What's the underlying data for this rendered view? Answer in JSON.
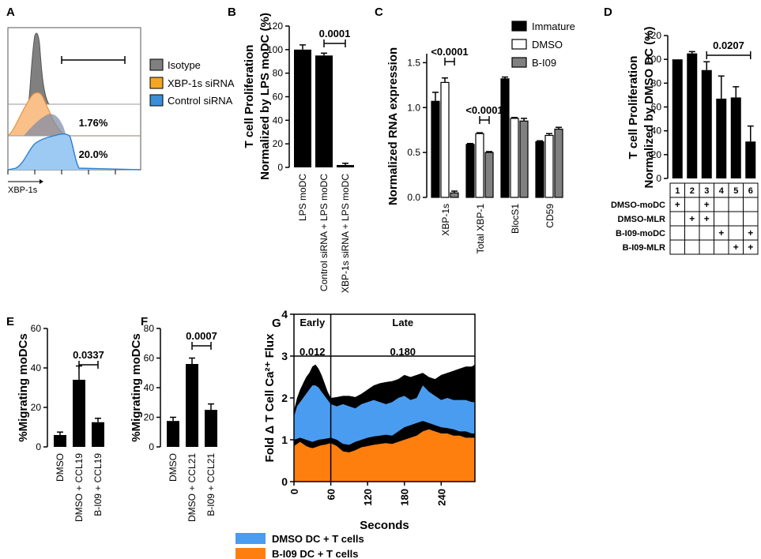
{
  "panels": {
    "A": {
      "label": "A",
      "xlabel": "XBP-1s",
      "gate_pcts": [
        "1.76%",
        "20.0%"
      ],
      "legend": [
        {
          "name": "Isotype",
          "color": "#808080"
        },
        {
          "name": "XBP-1s siRNA",
          "color": "#f5a623"
        },
        {
          "name": "Control siRNA",
          "color": "#3a8fd6"
        }
      ]
    },
    "B": {
      "label": "B"
    },
    "C": {
      "label": "C"
    },
    "D": {
      "label": "D"
    },
    "E": {
      "label": "E"
    },
    "F": {
      "label": "F"
    },
    "G": {
      "label": "G"
    }
  },
  "chart_data": [
    {
      "id": "B",
      "type": "bar",
      "ylabel_lines": [
        "T cell Proliferation",
        "Normalized by LPS moDC (%)"
      ],
      "ylim": [
        0,
        120
      ],
      "yticks": [
        0,
        20,
        40,
        60,
        80,
        100,
        120
      ],
      "categories": [
        "LPS moDC",
        "Control siRNA + LPS moDC",
        "XBP-1s siRNA + LPS moDC"
      ],
      "values": [
        100,
        95,
        2
      ],
      "errors": [
        4,
        2,
        1.5
      ],
      "annotation": {
        "text": "0.0001",
        "between": [
          1,
          2
        ]
      }
    },
    {
      "id": "C",
      "type": "bar",
      "ylabel": "Normalized RNA expression",
      "ylim": [
        0,
        1.6
      ],
      "yticks": [
        0.0,
        0.5,
        1.0,
        1.5
      ],
      "categories": [
        "XBP-1s",
        "Total XBP-1",
        "BlocS1",
        "CD59"
      ],
      "series": [
        {
          "name": "Immature",
          "color": "#000000",
          "values": [
            1.07,
            0.59,
            1.32,
            0.62
          ],
          "errors": [
            0.1,
            0.01,
            0.02,
            0.01
          ]
        },
        {
          "name": "DMSO",
          "color": "#ffffff",
          "values": [
            1.28,
            0.71,
            0.88,
            0.69
          ],
          "errors": [
            0.05,
            0.01,
            0.01,
            0.02
          ]
        },
        {
          "name": "B-I09",
          "color": "#808080",
          "values": [
            0.05,
            0.5,
            0.85,
            0.76
          ],
          "errors": [
            0.02,
            0.01,
            0.03,
            0.02
          ]
        }
      ],
      "annotations": [
        {
          "text": "<0.0001",
          "group": 0
        },
        {
          "text": "<0.0001",
          "group": 1
        }
      ]
    },
    {
      "id": "D",
      "type": "bar",
      "ylabel_lines": [
        "T cell Proliferation",
        "Normalized by DMSO DC (%)"
      ],
      "ylim": [
        0,
        120
      ],
      "yticks": [
        0,
        20,
        40,
        60,
        80,
        100,
        120
      ],
      "categories": [
        "1",
        "2",
        "3",
        "4",
        "5",
        "6"
      ],
      "values": [
        100,
        105,
        91,
        67,
        68,
        31
      ],
      "errors": [
        0,
        1.5,
        7,
        19,
        9,
        13
      ],
      "annotation": {
        "text": "0.0207",
        "between": [
          2,
          5
        ]
      },
      "table": {
        "columns": [
          "1",
          "2",
          "3",
          "4",
          "5",
          "6"
        ],
        "rows": [
          {
            "label": "DMSO-moDC",
            "marks": [
              "+",
              "",
              "+",
              "",
              "",
              ""
            ]
          },
          {
            "label": "DMSO-MLR",
            "marks": [
              "",
              "+",
              "+",
              "",
              "",
              ""
            ]
          },
          {
            "label": "B-I09-moDC",
            "marks": [
              "",
              "",
              "",
              "+",
              "",
              "+"
            ]
          },
          {
            "label": "B-I09-MLR",
            "marks": [
              "",
              "",
              "",
              "",
              "+",
              "+"
            ]
          }
        ]
      }
    },
    {
      "id": "E",
      "type": "bar",
      "ylabel": "%Migrating moDCs",
      "ylim": [
        0,
        60
      ],
      "yticks": [
        0,
        20,
        40,
        60
      ],
      "categories": [
        "DMSO",
        "DMSO + CCL19",
        "B-I09 + CCL19"
      ],
      "values": [
        6,
        34,
        12.5
      ],
      "errors": [
        1.5,
        7,
        2
      ],
      "annotation": {
        "text": "0.0337",
        "between": [
          1,
          2
        ]
      }
    },
    {
      "id": "F",
      "type": "bar",
      "ylabel": "%Migrating moDCs",
      "ylim": [
        0,
        80
      ],
      "yticks": [
        0,
        20,
        40,
        60,
        80
      ],
      "categories": [
        "DMSO",
        "DMSO + CCL21",
        "B-I09 + CCL21"
      ],
      "values": [
        17.5,
        56,
        25
      ],
      "errors": [
        2.5,
        4,
        4
      ],
      "annotation": {
        "text": "0.0007",
        "between": [
          1,
          2
        ]
      }
    },
    {
      "id": "G",
      "type": "area",
      "ylabel": "Fold Δ T Cell Ca²⁺ Flux",
      "xlabel": "Seconds",
      "xlim": [
        0,
        295
      ],
      "ylim": [
        0,
        4
      ],
      "xticks": [
        0,
        60,
        120,
        180,
        240
      ],
      "yticks": [
        0,
        1,
        2,
        3,
        4
      ],
      "regions": [
        {
          "name": "Early",
          "value": "0.012"
        },
        {
          "name": "Late",
          "value": "0.180"
        }
      ],
      "divider_x": 60,
      "threshold_y": 3,
      "series": [
        {
          "name": "DMSO DC + T cells",
          "color": "#4a9cf0",
          "x": [
            0,
            5,
            10,
            15,
            20,
            25,
            30,
            35,
            40,
            45,
            50,
            55,
            60,
            70,
            80,
            90,
            100,
            110,
            120,
            130,
            140,
            150,
            160,
            170,
            180,
            190,
            200,
            210,
            220,
            230,
            240,
            250,
            260,
            270,
            280,
            290,
            295
          ],
          "y": [
            1.55,
            1.8,
            1.9,
            2.0,
            2.1,
            2.2,
            2.3,
            2.3,
            2.25,
            2.15,
            2.05,
            1.95,
            1.85,
            1.8,
            1.85,
            1.8,
            1.75,
            1.85,
            1.9,
            1.95,
            1.9,
            1.85,
            1.9,
            2.0,
            2.05,
            1.95,
            2.0,
            2.3,
            2.15,
            2.05,
            1.95,
            2.0,
            1.95,
            1.95,
            1.95,
            1.9,
            1.9
          ]
        },
        {
          "name": "upper range",
          "color": "#000000",
          "x": [
            0,
            5,
            10,
            15,
            20,
            25,
            30,
            35,
            40,
            45,
            50,
            55,
            60,
            70,
            80,
            90,
            100,
            110,
            120,
            130,
            140,
            150,
            160,
            170,
            180,
            190,
            200,
            210,
            220,
            230,
            240,
            250,
            260,
            270,
            280,
            290,
            295
          ],
          "y": [
            1.7,
            2.0,
            2.2,
            2.35,
            2.5,
            2.6,
            2.75,
            2.8,
            2.7,
            2.55,
            2.35,
            2.15,
            2.0,
            2.02,
            2.05,
            2.05,
            2.02,
            2.1,
            2.2,
            2.3,
            2.35,
            2.38,
            2.4,
            2.45,
            2.55,
            2.5,
            2.55,
            2.6,
            2.5,
            2.45,
            2.55,
            2.6,
            2.65,
            2.7,
            2.75,
            2.75,
            2.8
          ]
        },
        {
          "name": "B-I09 DC + T cells",
          "color": "#ff7f0e",
          "x": [
            0,
            5,
            10,
            15,
            20,
            25,
            30,
            35,
            40,
            45,
            50,
            55,
            60,
            70,
            80,
            90,
            100,
            110,
            120,
            130,
            140,
            150,
            160,
            170,
            180,
            190,
            200,
            210,
            220,
            230,
            240,
            250,
            260,
            270,
            280,
            290,
            295
          ],
          "y": [
            0.85,
            0.9,
            0.95,
            0.9,
            0.85,
            0.82,
            0.8,
            0.82,
            0.85,
            0.87,
            0.88,
            0.9,
            0.92,
            0.85,
            0.72,
            0.7,
            0.75,
            0.82,
            0.85,
            0.88,
            0.9,
            0.92,
            0.9,
            0.95,
            1.0,
            1.05,
            1.1,
            1.2,
            1.25,
            1.2,
            1.15,
            1.15,
            1.1,
            1.1,
            1.05,
            1.05,
            1.05
          ]
        },
        {
          "name": "lower range",
          "color": "#000000",
          "x": [
            0,
            10,
            20,
            30,
            40,
            50,
            60,
            70,
            80,
            90,
            100,
            110,
            120,
            130,
            140,
            150,
            160,
            170,
            180,
            190,
            200,
            210,
            220,
            230,
            240,
            250,
            260,
            270,
            280,
            290,
            295
          ],
          "y": [
            1.0,
            1.05,
            1.0,
            0.95,
            1.0,
            1.02,
            1.05,
            1.0,
            0.9,
            0.88,
            0.95,
            1.0,
            1.05,
            1.08,
            1.1,
            1.12,
            1.1,
            1.2,
            1.3,
            1.35,
            1.4,
            1.45,
            1.4,
            1.35,
            1.3,
            1.28,
            1.25,
            1.2,
            1.2,
            1.15,
            1.15
          ]
        }
      ]
    }
  ]
}
